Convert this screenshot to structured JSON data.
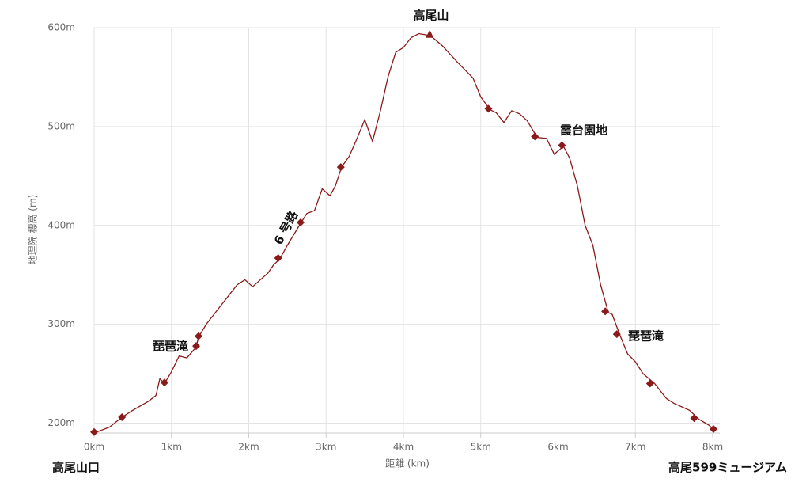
{
  "chart_data": {
    "type": "line",
    "x_label": "距離 (km)",
    "y_label": "地理院 標高 (m)",
    "xlim": [
      0,
      8.1
    ],
    "ylim": [
      190,
      600
    ],
    "xticks": [
      {
        "value": 0,
        "label": "0km"
      },
      {
        "value": 1,
        "label": "1km"
      },
      {
        "value": 2,
        "label": "2km"
      },
      {
        "value": 3,
        "label": "3km"
      },
      {
        "value": 4,
        "label": "4km"
      },
      {
        "value": 5,
        "label": "5km"
      },
      {
        "value": 6,
        "label": "6km"
      },
      {
        "value": 7,
        "label": "7km"
      },
      {
        "value": 8,
        "label": "8km"
      }
    ],
    "yticks": [
      {
        "value": 200,
        "label": "200m"
      },
      {
        "value": 300,
        "label": "300m"
      },
      {
        "value": 400,
        "label": "400m"
      },
      {
        "value": 500,
        "label": "500m"
      },
      {
        "value": 600,
        "label": "600m"
      }
    ],
    "grid": true,
    "color": "#8b1a1a",
    "x": [
      0,
      0.2,
      0.36,
      0.5,
      0.7,
      0.8,
      0.85,
      0.91,
      1.0,
      1.1,
      1.2,
      1.32,
      1.35,
      1.45,
      1.55,
      1.65,
      1.75,
      1.85,
      1.95,
      2.05,
      2.15,
      2.25,
      2.32,
      2.4,
      2.5,
      2.6,
      2.67,
      2.75,
      2.85,
      2.95,
      3.05,
      3.12,
      3.2,
      3.3,
      3.4,
      3.5,
      3.6,
      3.7,
      3.8,
      3.9,
      4.0,
      4.1,
      4.2,
      4.35,
      4.5,
      4.7,
      4.9,
      5.0,
      5.12,
      5.2,
      5.3,
      5.4,
      5.5,
      5.6,
      5.73,
      5.85,
      5.95,
      6.07,
      6.15,
      6.25,
      6.35,
      6.45,
      6.55,
      6.65,
      6.7,
      6.8,
      6.9,
      7.0,
      7.1,
      7.25,
      7.4,
      7.5,
      7.7,
      7.82,
      7.95,
      8.02
    ],
    "values": [
      190,
      196,
      206,
      213,
      222,
      228,
      245,
      240,
      252,
      268,
      266,
      277,
      287,
      300,
      310,
      320,
      330,
      340,
      345,
      338,
      345,
      352,
      360,
      366,
      380,
      393,
      402,
      412,
      415,
      437,
      430,
      440,
      459,
      470,
      488,
      507,
      485,
      515,
      550,
      575,
      580,
      590,
      594,
      592,
      582,
      565,
      549,
      530,
      517,
      514,
      504,
      516,
      513,
      506,
      489,
      488,
      472,
      480,
      468,
      440,
      400,
      380,
      340,
      312,
      310,
      289,
      270,
      262,
      250,
      240,
      225,
      220,
      213,
      204,
      198,
      193
    ],
    "markers": {
      "x": [
        0,
        0.36,
        0.91,
        1.32,
        1.35,
        2.38,
        2.67,
        3.19,
        5.1,
        5.7,
        6.05,
        6.61,
        6.76,
        7.19,
        7.76,
        8.01
      ],
      "values": [
        191,
        206,
        241,
        278,
        288,
        367,
        403,
        459,
        518,
        490,
        481,
        313,
        290,
        240,
        205,
        194
      ]
    },
    "peak": {
      "x": 4.34,
      "value": 593
    },
    "annotations": [
      "高尾山",
      "霞台園地",
      "琵琶滝",
      "琵琶滝",
      "6 号路"
    ],
    "start_label": "高尾山口",
    "end_label": "高尾599ミュージアム"
  }
}
